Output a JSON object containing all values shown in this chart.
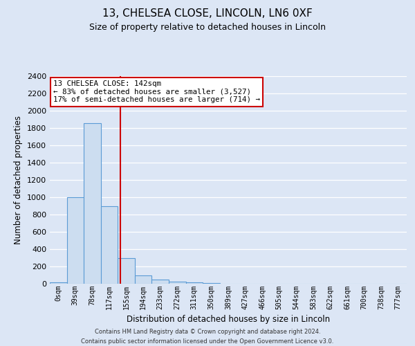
{
  "title": "13, CHELSEA CLOSE, LINCOLN, LN6 0XF",
  "subtitle": "Size of property relative to detached houses in Lincoln",
  "xlabel": "Distribution of detached houses by size in Lincoln",
  "ylabel": "Number of detached properties",
  "bar_labels": [
    "0sqm",
    "39sqm",
    "78sqm",
    "117sqm",
    "155sqm",
    "194sqm",
    "233sqm",
    "272sqm",
    "311sqm",
    "350sqm",
    "389sqm",
    "427sqm",
    "466sqm",
    "505sqm",
    "544sqm",
    "583sqm",
    "622sqm",
    "661sqm",
    "700sqm",
    "738sqm",
    "777sqm"
  ],
  "bar_values": [
    20,
    1000,
    1860,
    900,
    300,
    100,
    50,
    25,
    20,
    10,
    0,
    0,
    0,
    0,
    0,
    0,
    0,
    0,
    0,
    0,
    0
  ],
  "bar_color": "#ccddf0",
  "bar_edge_color": "#5b9bd5",
  "ylim": [
    0,
    2400
  ],
  "yticks": [
    0,
    200,
    400,
    600,
    800,
    1000,
    1200,
    1400,
    1600,
    1800,
    2000,
    2200,
    2400
  ],
  "red_line_x": 3.64,
  "red_line_color": "#cc0000",
  "annotation_title": "13 CHELSEA CLOSE: 142sqm",
  "annotation_line1": "← 83% of detached houses are smaller (3,527)",
  "annotation_line2": "17% of semi-detached houses are larger (714) →",
  "annotation_box_color": "#ffffff",
  "annotation_box_edge": "#cc0000",
  "bg_color": "#dce6f5",
  "plot_bg_color": "#dce6f5",
  "footer_line1": "Contains HM Land Registry data © Crown copyright and database right 2024.",
  "footer_line2": "Contains public sector information licensed under the Open Government Licence v3.0.",
  "grid_color": "#ffffff",
  "title_fontsize": 11,
  "subtitle_fontsize": 9
}
